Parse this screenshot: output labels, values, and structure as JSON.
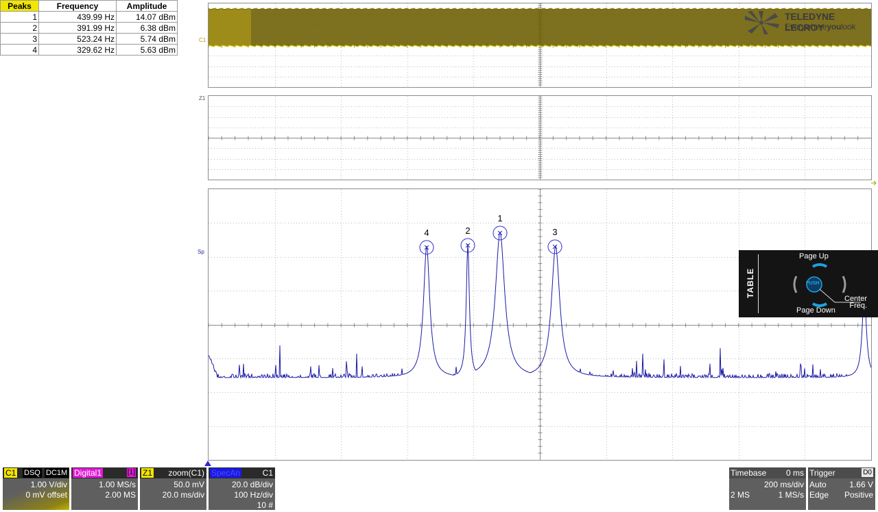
{
  "peaks_table": {
    "headers": [
      "Peaks",
      "Frequency",
      "Amplitude"
    ],
    "rows": [
      [
        "1",
        "439.99 Hz",
        "14.07 dBm"
      ],
      [
        "2",
        "391.99 Hz",
        "6.38 dBm"
      ],
      [
        "3",
        "523.24 Hz",
        "5.74 dBm"
      ],
      [
        "4",
        "329.62 Hz",
        "5.63 dBm"
      ]
    ]
  },
  "grid_labels": {
    "c1": "C1",
    "z1": "Z1",
    "sp": "Sp"
  },
  "logo": {
    "line1": "TELEDYNE LECROY",
    "line2_a": "Everywhere",
    "line2_b": "you",
    "line2_c": "look"
  },
  "peak_markers": [
    "4",
    "2",
    "1",
    "3"
  ],
  "overlay": {
    "title": "TABLE",
    "page_up": "Page Up",
    "page_down": "Page Down",
    "push": "PUSH",
    "center_freq_1": "Center",
    "center_freq_2": "Freq."
  },
  "descriptors": {
    "c1": {
      "tag": "C1",
      "b1": "DSQ",
      "b2": "DC1M",
      "line1": "1.00 V/div",
      "line2": "0 mV offset"
    },
    "digital": {
      "tag": "Digital1",
      "badge": "[1]",
      "line1": "1.00 MS/s",
      "line2": "2.00 MS"
    },
    "z1": {
      "tag": "Z1",
      "src": "zoom(C1)",
      "line1": "50.0 mV",
      "line2": "20.0 ms/div"
    },
    "spec": {
      "tag": "SpecAn",
      "src": "C1",
      "line1": "20.0 dB/div",
      "line2": "100 Hz/div",
      "line3": "10 #"
    },
    "timebase": {
      "title": "Timebase",
      "value": "0 ms",
      "line1": "200 ms/div",
      "line2a": "2 MS",
      "line2b": "1 MS/s"
    },
    "trigger": {
      "title": "Trigger",
      "badge": "D0",
      "l1a": "Auto",
      "l1b": "1.66 V",
      "l2a": "Edge",
      "l2b": "Positive"
    }
  },
  "colors": {
    "c1": "#f2e600",
    "c1_band": "#6b5c00",
    "digital": "#e01ad6",
    "spectrum": "#1a1aa6",
    "marker": "#2a2acc",
    "overlay_accent": "#1ea3e0",
    "descriptor_bg": "#5f5f5f"
  }
}
